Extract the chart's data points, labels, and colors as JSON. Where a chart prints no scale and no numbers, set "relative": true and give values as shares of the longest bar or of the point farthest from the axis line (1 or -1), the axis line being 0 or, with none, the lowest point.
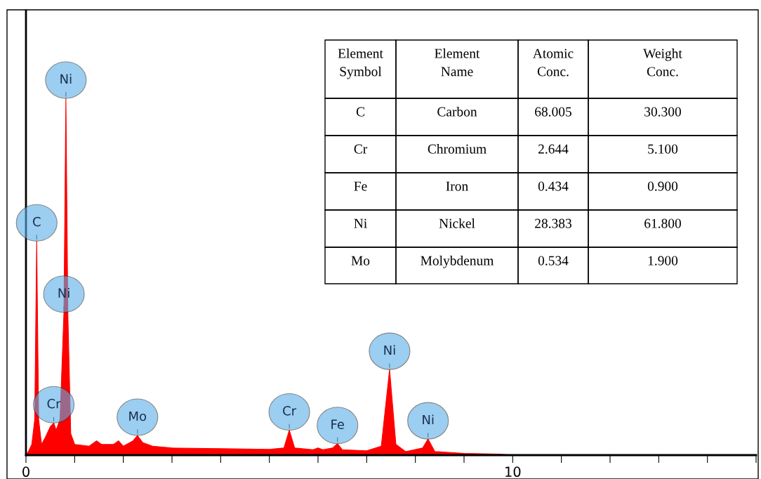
{
  "chart_data": {
    "type": "area",
    "relative": true,
    "xlim": [
      0,
      15
    ],
    "xticks": [
      0,
      {
        "value": 1,
        "label": null
      },
      {
        "value": 2,
        "label": null
      },
      {
        "value": 3,
        "label": null
      },
      {
        "value": 4,
        "label": null
      },
      {
        "value": 5,
        "label": null
      },
      {
        "value": 6,
        "label": null
      },
      {
        "value": 7,
        "label": null
      },
      {
        "value": 8,
        "label": null
      },
      {
        "value": 9,
        "label": null
      },
      10,
      {
        "value": 11,
        "label": null
      },
      {
        "value": 12,
        "label": null
      },
      {
        "value": 13,
        "label": null
      },
      {
        "value": 14,
        "label": null
      },
      {
        "value": 15,
        "label": null
      }
    ],
    "tick_labels": "x",
    "grid": false,
    "series": [
      {
        "color": "#ff0000",
        "x": [
          0,
          0.05,
          0.12,
          0.18,
          0.22,
          0.26,
          0.32,
          0.4,
          0.5,
          0.57,
          0.62,
          0.7,
          0.78,
          0.82,
          0.86,
          0.92,
          1.0,
          1.3,
          1.45,
          1.55,
          1.8,
          1.9,
          2.0,
          2.2,
          2.29,
          2.4,
          2.6,
          3.0,
          4.0,
          5.0,
          5.3,
          5.41,
          5.52,
          5.9,
          6.0,
          6.1,
          6.3,
          6.4,
          6.5,
          7.0,
          7.3,
          7.47,
          7.6,
          7.8,
          8.15,
          8.26,
          8.4,
          9.0,
          9.7,
          10,
          15
        ],
        "values": [
          0,
          0.01,
          0.03,
          0.1,
          0.6,
          0.1,
          0.03,
          0.05,
          0.08,
          0.09,
          0.07,
          0.1,
          0.4,
          1.0,
          0.4,
          0.06,
          0.03,
          0.025,
          0.04,
          0.03,
          0.03,
          0.04,
          0.025,
          0.04,
          0.055,
          0.035,
          0.025,
          0.02,
          0.018,
          0.016,
          0.02,
          0.07,
          0.02,
          0.015,
          0.02,
          0.015,
          0.02,
          0.032,
          0.015,
          0.012,
          0.025,
          0.24,
          0.03,
          0.01,
          0.02,
          0.045,
          0.01,
          0.005,
          0.003,
          0,
          0
        ]
      }
    ],
    "annotations": [
      {
        "text": "Ni",
        "x": 0.82,
        "y": 1.0
      },
      {
        "text": "C",
        "x": 0.22,
        "y": 0.6
      },
      {
        "text": "Ni",
        "x": 0.78,
        "y": 0.4
      },
      {
        "text": "Cr",
        "x": 0.57,
        "y": 0.09
      },
      {
        "text": "Mo",
        "x": 2.29,
        "y": 0.055
      },
      {
        "text": "Cr",
        "x": 5.41,
        "y": 0.07
      },
      {
        "text": "Fe",
        "x": 6.4,
        "y": 0.032
      },
      {
        "text": "Ni",
        "x": 7.47,
        "y": 0.24
      },
      {
        "text": "Ni",
        "x": 8.26,
        "y": 0.045
      },
      "Element\nSymbol",
      "Element\nName",
      "Atomic\nConc.",
      "Weight\nConc.",
      "C",
      "Carbon",
      "68.005",
      "30.300",
      "Cr",
      "Chromium",
      "2.644",
      "5.100",
      "Fe",
      "Iron",
      "0.434",
      "0.900",
      "Ni",
      "Nickel",
      "28.383",
      "61.800",
      "Mo",
      "Molybdenum",
      "0.534",
      "1.900"
    ]
  }
}
